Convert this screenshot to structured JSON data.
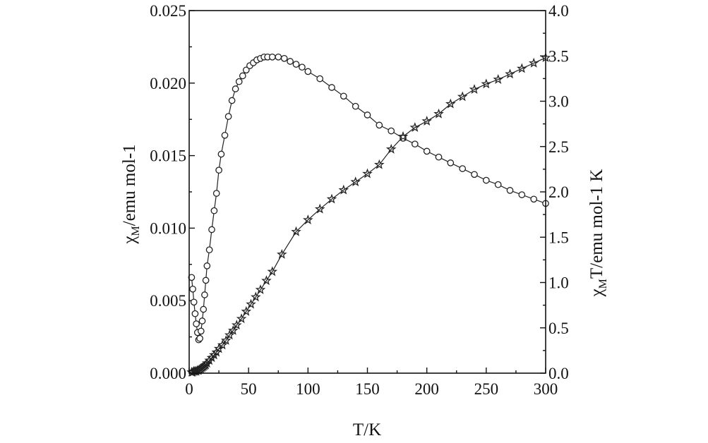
{
  "chart_data": {
    "type": "scatter",
    "xlabel": "T/K",
    "ylabel_left": {
      "main": "χ",
      "sub": "M",
      "rest": "/emu mol-1"
    },
    "ylabel_right": {
      "main": "χ",
      "sub": "M",
      "rest": "T/emu mol-1 K"
    },
    "xlim": [
      0,
      300
    ],
    "ylim_left": [
      0.0,
      0.025
    ],
    "ylim_right": [
      0.0,
      4.0
    ],
    "x_ticks": [
      "0",
      "50",
      "100",
      "150",
      "200",
      "250",
      "300"
    ],
    "y_left_ticks": [
      "0.000",
      "0.005",
      "0.010",
      "0.015",
      "0.020",
      "0.025"
    ],
    "y_right_ticks": [
      "0.0",
      "0.5",
      "1.0",
      "1.5",
      "2.0",
      "2.5",
      "3.0",
      "3.5",
      "4.0"
    ],
    "grid": false,
    "series": [
      {
        "axis": "left",
        "marker": "circle",
        "x": [
          2,
          3,
          4,
          5,
          6,
          7,
          8,
          9,
          10,
          11,
          12,
          13,
          14,
          15,
          17,
          19,
          21,
          23,
          25,
          27,
          30,
          33,
          36,
          39,
          42,
          45,
          48,
          51,
          54,
          57,
          60,
          63,
          66,
          70,
          75,
          80,
          85,
          90,
          95,
          100,
          110,
          120,
          130,
          140,
          150,
          160,
          170,
          180,
          190,
          200,
          210,
          220,
          230,
          240,
          250,
          260,
          270,
          280,
          290,
          300
        ],
        "values": [
          0.0066,
          0.0058,
          0.0049,
          0.0041,
          0.0034,
          0.0028,
          0.0023,
          0.0024,
          0.0029,
          0.0036,
          0.0044,
          0.0054,
          0.0064,
          0.0074,
          0.0085,
          0.0099,
          0.0112,
          0.0124,
          0.014,
          0.0151,
          0.0164,
          0.0177,
          0.0188,
          0.0196,
          0.0201,
          0.0205,
          0.0209,
          0.0212,
          0.0214,
          0.0216,
          0.0217,
          0.0218,
          0.0218,
          0.0218,
          0.0218,
          0.0217,
          0.0215,
          0.0213,
          0.0211,
          0.0208,
          0.0203,
          0.0197,
          0.0191,
          0.0184,
          0.0178,
          0.0171,
          0.0167,
          0.0162,
          0.0158,
          0.0153,
          0.0149,
          0.0145,
          0.0141,
          0.0137,
          0.0133,
          0.013,
          0.0126,
          0.0123,
          0.012,
          0.0117
        ]
      },
      {
        "axis": "right",
        "marker": "star",
        "x": [
          2,
          3,
          4,
          5,
          6,
          7,
          8,
          9,
          10,
          11,
          12,
          13,
          14,
          15,
          17,
          19,
          21,
          23,
          25,
          28,
          31,
          34,
          37,
          40,
          44,
          48,
          52,
          56,
          60,
          65,
          70,
          78,
          90,
          100,
          110,
          120,
          130,
          140,
          150,
          160,
          170,
          180,
          190,
          200,
          210,
          220,
          230,
          240,
          250,
          260,
          270,
          280,
          290,
          300
        ],
        "values": [
          0.01,
          0.01,
          0.02,
          0.02,
          0.02,
          0.03,
          0.03,
          0.04,
          0.05,
          0.06,
          0.07,
          0.08,
          0.09,
          0.11,
          0.14,
          0.17,
          0.2,
          0.23,
          0.27,
          0.31,
          0.36,
          0.42,
          0.47,
          0.53,
          0.6,
          0.68,
          0.76,
          0.84,
          0.92,
          1.02,
          1.12,
          1.31,
          1.56,
          1.69,
          1.81,
          1.92,
          2.02,
          2.11,
          2.2,
          2.3,
          2.47,
          2.61,
          2.71,
          2.78,
          2.86,
          2.97,
          3.05,
          3.13,
          3.19,
          3.24,
          3.3,
          3.36,
          3.42,
          3.48
        ]
      }
    ]
  }
}
